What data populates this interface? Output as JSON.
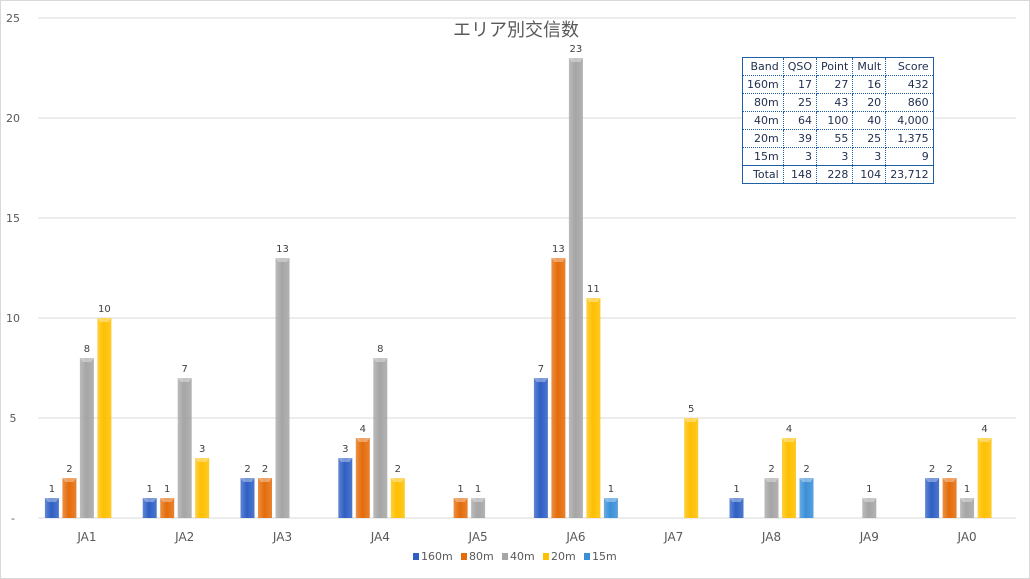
{
  "chart_data": {
    "type": "bar",
    "title": "エリア別交信数",
    "categories": [
      "JA1",
      "JA2",
      "JA3",
      "JA4",
      "JA5",
      "JA6",
      "JA7",
      "JA8",
      "JA9",
      "JA0"
    ],
    "series": [
      {
        "name": "160m",
        "color": "#2e5fc4",
        "values": [
          1,
          1,
          2,
          3,
          0,
          7,
          0,
          1,
          0,
          2
        ]
      },
      {
        "name": "80m",
        "color": "#e46c0a",
        "values": [
          2,
          1,
          2,
          4,
          1,
          13,
          0,
          0,
          0,
          2
        ]
      },
      {
        "name": "40m",
        "color": "#a5a5a5",
        "values": [
          8,
          7,
          13,
          8,
          1,
          23,
          0,
          2,
          1,
          1
        ]
      },
      {
        "name": "20m",
        "color": "#ffc000",
        "values": [
          10,
          3,
          0,
          2,
          0,
          11,
          5,
          4,
          0,
          4
        ]
      },
      {
        "name": "15m",
        "color": "#3b8fd8",
        "values": [
          0,
          0,
          0,
          0,
          0,
          1,
          0,
          2,
          0,
          0
        ]
      }
    ],
    "ylim": [
      0,
      25
    ],
    "yticks": [
      "-",
      "5",
      "10",
      "15",
      "20",
      "25"
    ],
    "grid": true,
    "legend": "bottom"
  },
  "score_table": {
    "headers": [
      "Band",
      "QSO",
      "Point",
      "Mult",
      "Score"
    ],
    "rows": [
      [
        "160m",
        "17",
        "27",
        "16",
        "432"
      ],
      [
        "80m",
        "25",
        "43",
        "20",
        "860"
      ],
      [
        "40m",
        "64",
        "100",
        "40",
        "4,000"
      ],
      [
        "20m",
        "39",
        "55",
        "25",
        "1,375"
      ],
      [
        "15m",
        "3",
        "3",
        "3",
        "9"
      ]
    ],
    "total": [
      "Total",
      "148",
      "228",
      "104",
      "23,712"
    ]
  }
}
